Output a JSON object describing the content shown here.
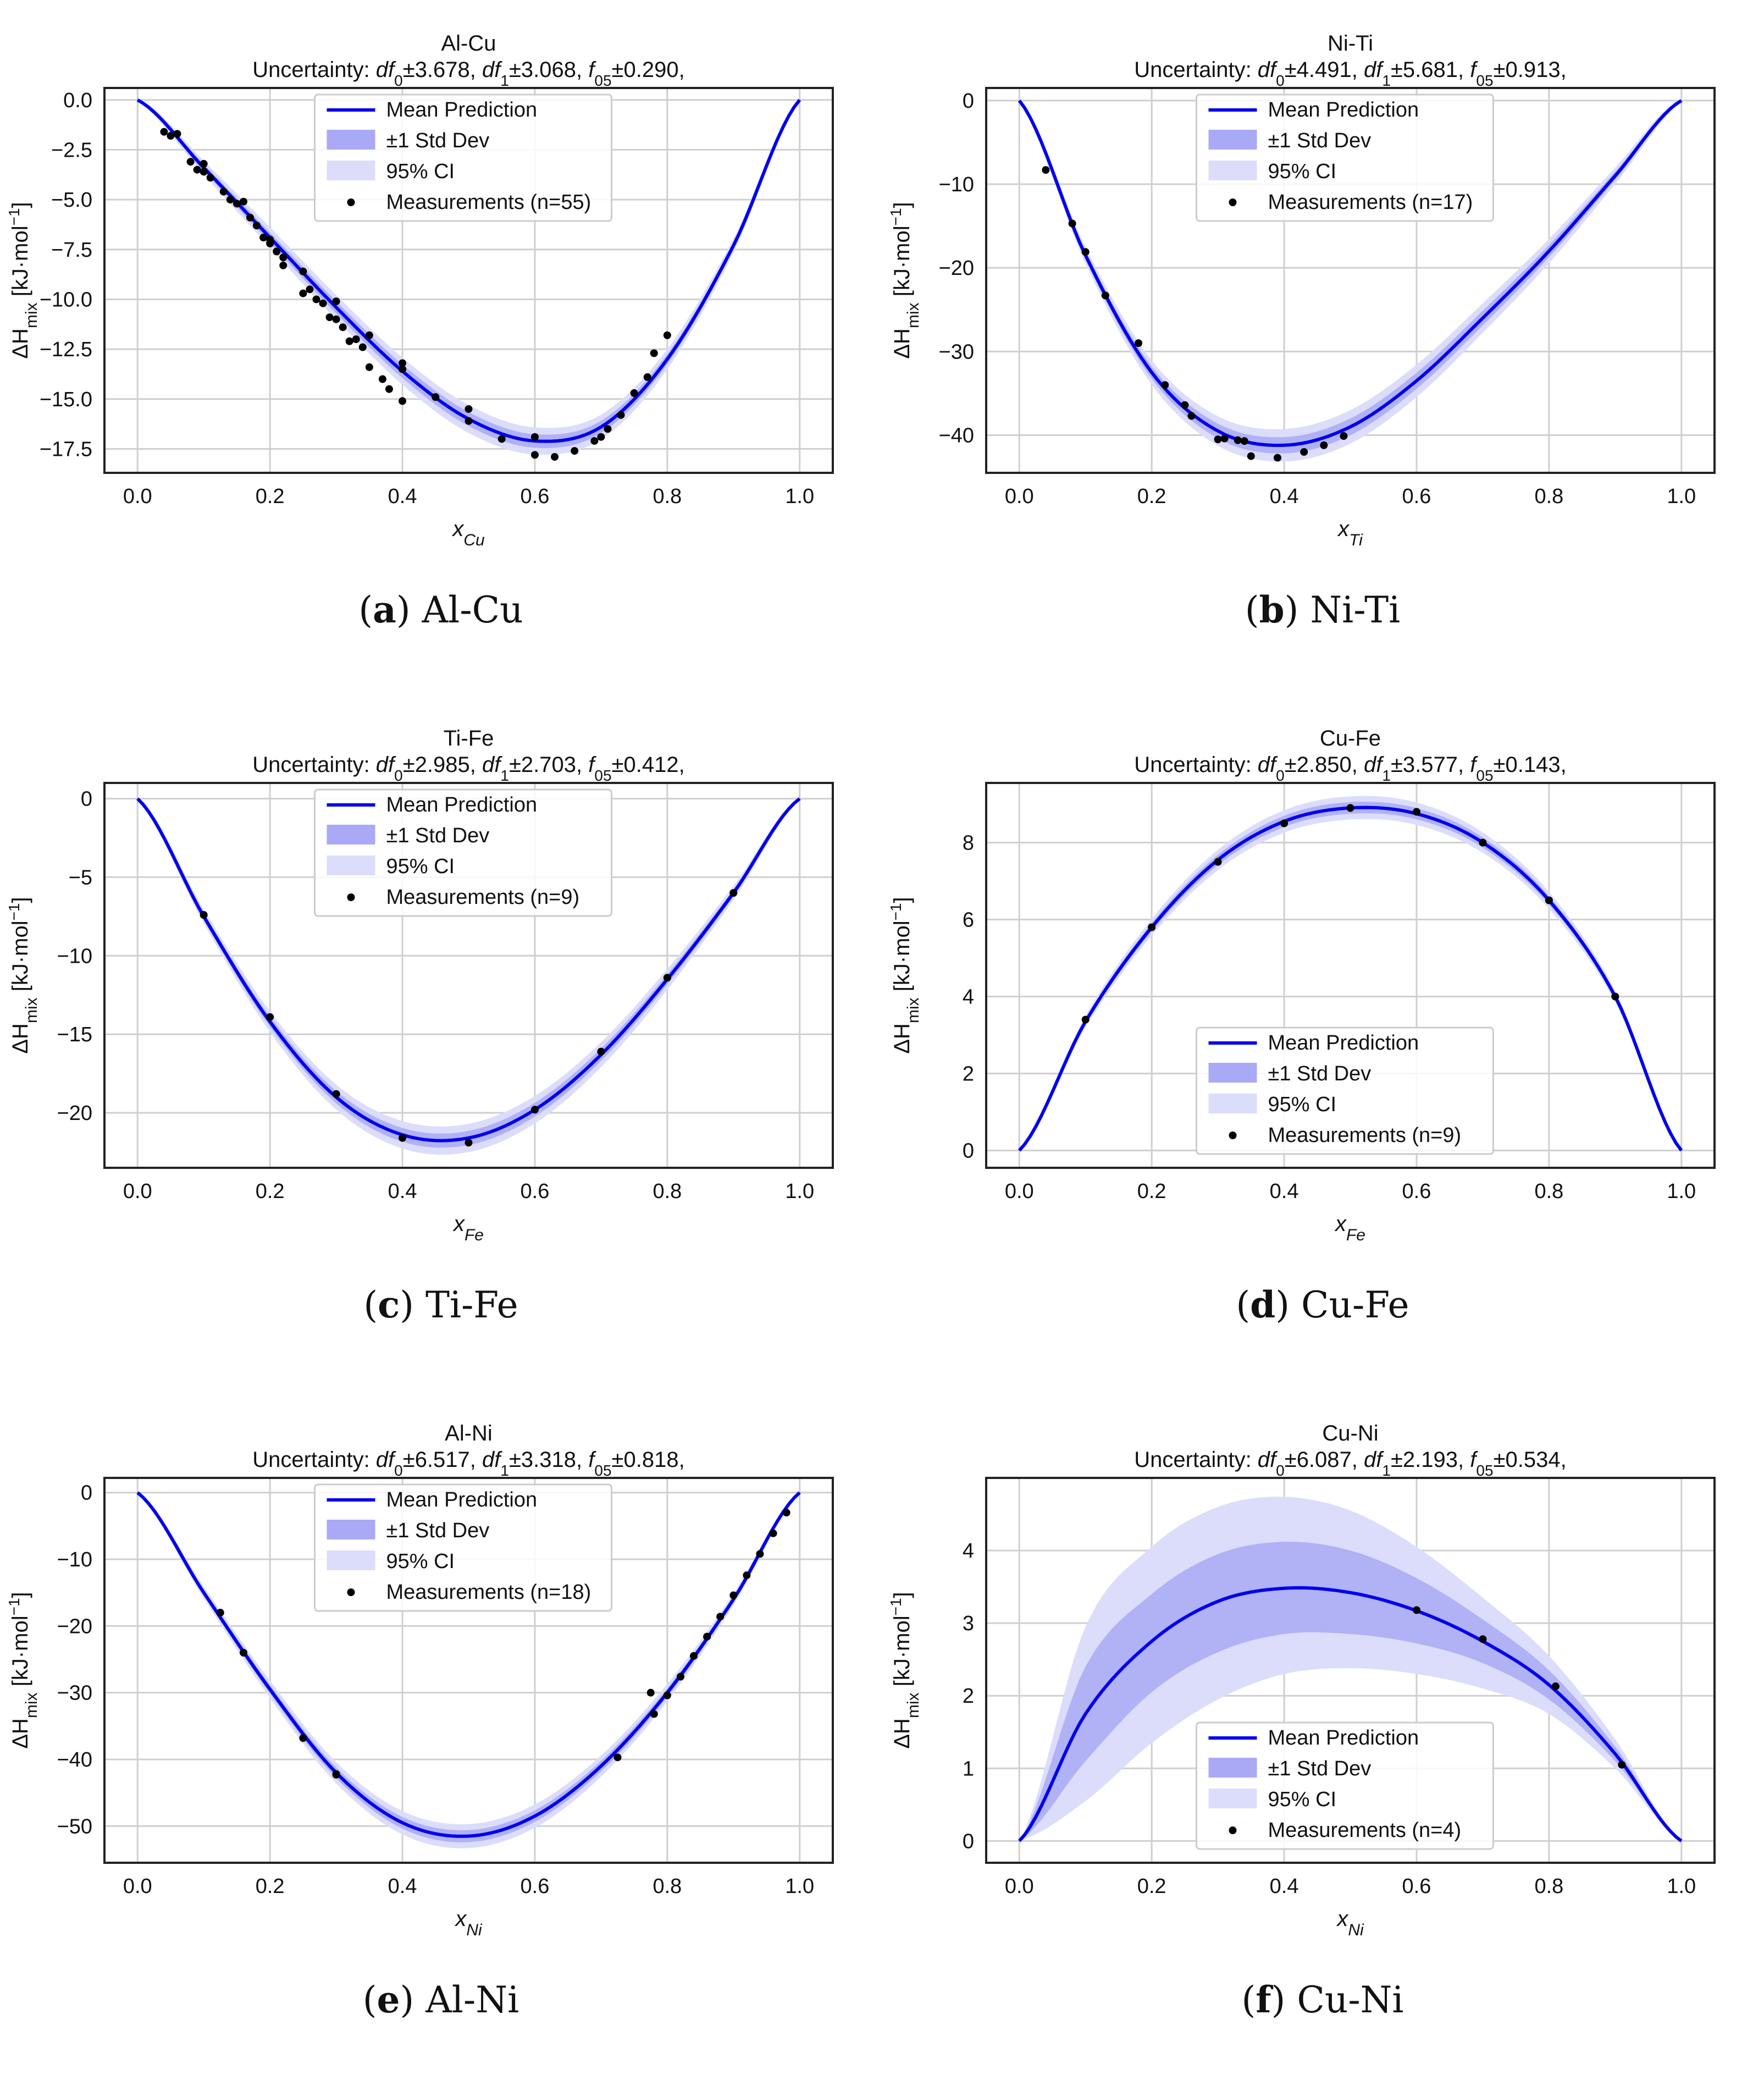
{
  "figure": {
    "common": {
      "ylabel_main": "ΔH",
      "ylabel_sub": "mix",
      "ylabel_units": " [kJ·mol",
      "ylabel_exp": "−1",
      "ylabel_close": "]",
      "uncertainty_prefix": "Uncertainty: ",
      "df0_symbol": "df",
      "df0_sub": "0",
      "df1_symbol": "df",
      "df1_sub": "1",
      "f05_symbol": "f",
      "f05_sub": "05",
      "legend_mean": "Mean Prediction",
      "legend_std": "±1 Std Dev",
      "legend_ci": "95% CI",
      "legend_meas_prefix": "Measurements (n=",
      "legend_meas_suffix": ")"
    },
    "colors": {
      "line": "#0000ee",
      "band1": "#a9a9f5",
      "band2": "#dcdcfb",
      "points": "#000000",
      "grid": "#cfcfcf"
    }
  },
  "chart_data": [
    {
      "type": "line",
      "caption_letter": "a",
      "caption_text": "Al-Cu",
      "title": "Al-Cu",
      "df0_value": "±3.678,",
      "df1_value": "±3.068,",
      "f05_value": "±0.290,",
      "xlabel_main": "x",
      "xlabel_sub": "Cu",
      "n": 55,
      "xlim": [
        -0.05,
        1.05
      ],
      "ylim": [
        -18.7,
        0.6
      ],
      "yticks": [
        0.0,
        -2.5,
        -5.0,
        -7.5,
        -10.0,
        -12.5,
        -15.0,
        -17.5
      ],
      "ytick_labels": [
        "0.0",
        "−2.5",
        "−5.0",
        "−7.5",
        "−10.0",
        "−12.5",
        "−15.0",
        "−17.5"
      ],
      "xticks": [
        0.0,
        0.2,
        0.4,
        0.6,
        0.8,
        1.0
      ],
      "xtick_labels": [
        "0.0",
        "0.2",
        "0.4",
        "0.6",
        "0.8",
        "1.0"
      ],
      "curve": {
        "x": [
          0,
          0.1,
          0.2,
          0.3,
          0.4,
          0.5,
          0.6,
          0.7,
          0.8,
          0.9,
          1.0
        ],
        "y": [
          0,
          -3.4,
          -6.9,
          -10.4,
          -13.6,
          -16.0,
          -17.1,
          -16.4,
          -13.0,
          -7.3,
          0
        ]
      },
      "std": 0.35,
      "ci": 0.7,
      "legend_pos": "top-center",
      "points": [
        [
          0.04,
          -1.6
        ],
        [
          0.05,
          -1.8
        ],
        [
          0.06,
          -1.7
        ],
        [
          0.08,
          -3.1
        ],
        [
          0.09,
          -3.5
        ],
        [
          0.1,
          -3.2
        ],
        [
          0.1,
          -3.6
        ],
        [
          0.11,
          -3.9
        ],
        [
          0.13,
          -4.6
        ],
        [
          0.14,
          -5.0
        ],
        [
          0.15,
          -5.2
        ],
        [
          0.16,
          -5.1
        ],
        [
          0.17,
          -5.9
        ],
        [
          0.18,
          -6.3
        ],
        [
          0.19,
          -6.9
        ],
        [
          0.2,
          -7.0
        ],
        [
          0.2,
          -7.2
        ],
        [
          0.21,
          -7.6
        ],
        [
          0.22,
          -7.9
        ],
        [
          0.22,
          -8.3
        ],
        [
          0.25,
          -8.6
        ],
        [
          0.25,
          -9.7
        ],
        [
          0.26,
          -9.5
        ],
        [
          0.27,
          -10.0
        ],
        [
          0.28,
          -10.2
        ],
        [
          0.29,
          -10.9
        ],
        [
          0.3,
          -10.1
        ],
        [
          0.3,
          -11.0
        ],
        [
          0.31,
          -11.4
        ],
        [
          0.32,
          -12.1
        ],
        [
          0.33,
          -12.0
        ],
        [
          0.34,
          -12.4
        ],
        [
          0.35,
          -11.8
        ],
        [
          0.35,
          -13.4
        ],
        [
          0.37,
          -14.0
        ],
        [
          0.38,
          -14.5
        ],
        [
          0.4,
          -13.2
        ],
        [
          0.4,
          -13.5
        ],
        [
          0.4,
          -15.1
        ],
        [
          0.45,
          -14.9
        ],
        [
          0.5,
          -15.5
        ],
        [
          0.5,
          -16.1
        ],
        [
          0.55,
          -17.0
        ],
        [
          0.6,
          -17.8
        ],
        [
          0.6,
          -16.9
        ],
        [
          0.63,
          -17.9
        ],
        [
          0.66,
          -17.6
        ],
        [
          0.69,
          -17.1
        ],
        [
          0.7,
          -16.9
        ],
        [
          0.71,
          -16.5
        ],
        [
          0.73,
          -15.8
        ],
        [
          0.75,
          -14.7
        ],
        [
          0.77,
          -13.9
        ],
        [
          0.78,
          -12.7
        ],
        [
          0.8,
          -11.8
        ]
      ]
    },
    {
      "type": "line",
      "caption_letter": "b",
      "caption_text": "Ni-Ti",
      "title": "Ni-Ti",
      "df0_value": "±4.491,",
      "df1_value": "±5.681,",
      "f05_value": "±0.913,",
      "xlabel_main": "x",
      "xlabel_sub": "Ti",
      "n": 17,
      "xlim": [
        -0.05,
        1.05
      ],
      "ylim": [
        -44.5,
        1.5
      ],
      "yticks": [
        0,
        -10,
        -20,
        -30,
        -40
      ],
      "ytick_labels": [
        "0",
        "−10",
        "−20",
        "−30",
        "−40"
      ],
      "xticks": [
        0.0,
        0.2,
        0.4,
        0.6,
        0.8,
        1.0
      ],
      "xtick_labels": [
        "0.0",
        "0.2",
        "0.4",
        "0.6",
        "0.8",
        "1.0"
      ],
      "curve": {
        "x": [
          0,
          0.1,
          0.2,
          0.3,
          0.4,
          0.5,
          0.6,
          0.7,
          0.8,
          0.9,
          1.0
        ],
        "y": [
          0,
          -18.5,
          -32.5,
          -39.5,
          -41.2,
          -39.0,
          -33.5,
          -26.0,
          -18.0,
          -9.0,
          0
        ]
      },
      "std": 1.0,
      "ci": 2.0,
      "legend_pos": "top-center",
      "points": [
        [
          0.04,
          -8.3
        ],
        [
          0.08,
          -14.7
        ],
        [
          0.1,
          -18.1
        ],
        [
          0.13,
          -23.3
        ],
        [
          0.18,
          -29.0
        ],
        [
          0.22,
          -34.0
        ],
        [
          0.25,
          -36.4
        ],
        [
          0.26,
          -37.7
        ],
        [
          0.3,
          -40.5
        ],
        [
          0.31,
          -40.4
        ],
        [
          0.34,
          -40.7
        ],
        [
          0.35,
          -42.5
        ],
        [
          0.39,
          -42.7
        ],
        [
          0.43,
          -42.0
        ],
        [
          0.46,
          -41.2
        ],
        [
          0.49,
          -40.1
        ],
        [
          0.33,
          -40.6
        ]
      ]
    },
    {
      "type": "line",
      "caption_letter": "c",
      "caption_text": "Ti-Fe",
      "title": "Ti-Fe",
      "df0_value": "±2.985,",
      "df1_value": "±2.703,",
      "f05_value": "±0.412,",
      "xlabel_main": "x",
      "xlabel_sub": "Fe",
      "n": 9,
      "xlim": [
        -0.05,
        1.05
      ],
      "ylim": [
        -23.5,
        1.0
      ],
      "yticks": [
        0,
        -5,
        -10,
        -15,
        -20
      ],
      "ytick_labels": [
        "0",
        "−5",
        "−10",
        "−15",
        "−20"
      ],
      "xticks": [
        0.0,
        0.2,
        0.4,
        0.6,
        0.8,
        1.0
      ],
      "xtick_labels": [
        "0.0",
        "0.2",
        "0.4",
        "0.6",
        "0.8",
        "1.0"
      ],
      "curve": {
        "x": [
          0,
          0.1,
          0.2,
          0.3,
          0.4,
          0.5,
          0.6,
          0.7,
          0.8,
          0.9,
          1.0
        ],
        "y": [
          0,
          -7.5,
          -14.2,
          -19.0,
          -21.4,
          -21.6,
          -19.8,
          -16.3,
          -11.5,
          -6.0,
          0
        ]
      },
      "std": 0.45,
      "ci": 0.9,
      "legend_pos": "top-center",
      "points": [
        [
          0.1,
          -7.4
        ],
        [
          0.2,
          -13.9
        ],
        [
          0.3,
          -18.8
        ],
        [
          0.4,
          -21.6
        ],
        [
          0.5,
          -21.9
        ],
        [
          0.6,
          -19.8
        ],
        [
          0.7,
          -16.1
        ],
        [
          0.8,
          -11.4
        ],
        [
          0.9,
          -6.0
        ]
      ]
    },
    {
      "type": "line",
      "caption_letter": "d",
      "caption_text": "Cu-Fe",
      "title": "Cu-Fe",
      "df0_value": "±2.850,",
      "df1_value": "±3.577,",
      "f05_value": "±0.143,",
      "xlabel_main": "x",
      "xlabel_sub": "Fe",
      "n": 9,
      "xlim": [
        -0.05,
        1.05
      ],
      "ylim": [
        -0.45,
        9.55
      ],
      "yticks": [
        0,
        2,
        4,
        6,
        8
      ],
      "ytick_labels": [
        "0",
        "2",
        "4",
        "6",
        "8"
      ],
      "xticks": [
        0.0,
        0.2,
        0.4,
        0.6,
        0.8,
        1.0
      ],
      "xtick_labels": [
        "0.0",
        "0.2",
        "0.4",
        "0.6",
        "0.8",
        "1.0"
      ],
      "curve": {
        "x": [
          0,
          0.1,
          0.2,
          0.3,
          0.4,
          0.5,
          0.6,
          0.7,
          0.8,
          0.9,
          1.0
        ],
        "y": [
          0,
          3.35,
          5.8,
          7.55,
          8.55,
          8.9,
          8.75,
          8.0,
          6.5,
          4.0,
          0
        ]
      },
      "std": 0.15,
      "ci": 0.3,
      "legend_pos": "bottom-center",
      "points": [
        [
          0.1,
          3.4
        ],
        [
          0.2,
          5.8
        ],
        [
          0.3,
          7.5
        ],
        [
          0.4,
          8.5
        ],
        [
          0.5,
          8.9
        ],
        [
          0.6,
          8.8
        ],
        [
          0.7,
          8.0
        ],
        [
          0.8,
          6.5
        ],
        [
          0.9,
          4.0
        ]
      ]
    },
    {
      "type": "line",
      "caption_letter": "e",
      "caption_text": "Al-Ni",
      "title": "Al-Ni",
      "df0_value": "±6.517,",
      "df1_value": "±3.318,",
      "f05_value": "±0.818,",
      "xlabel_main": "x",
      "xlabel_sub": "Ni",
      "n": 18,
      "xlim": [
        -0.05,
        1.05
      ],
      "ylim": [
        -55.5,
        2.2
      ],
      "yticks": [
        0,
        -10,
        -20,
        -30,
        -40,
        -50
      ],
      "ytick_labels": [
        "0",
        "−10",
        "−20",
        "−30",
        "−40",
        "−50"
      ],
      "xticks": [
        0.0,
        0.2,
        0.4,
        0.6,
        0.8,
        1.0
      ],
      "xtick_labels": [
        "0.0",
        "0.2",
        "0.4",
        "0.6",
        "0.8",
        "1.0"
      ],
      "curve": {
        "x": [
          0,
          0.1,
          0.2,
          0.3,
          0.4,
          0.5,
          0.6,
          0.7,
          0.8,
          0.9,
          1.0
        ],
        "y": [
          0,
          -15.0,
          -29.5,
          -42.0,
          -49.5,
          -51.5,
          -48.5,
          -41.0,
          -30.0,
          -16.0,
          0
        ]
      },
      "std": 0.9,
      "ci": 1.8,
      "legend_pos": "top-center",
      "points": [
        [
          0.125,
          -18.0
        ],
        [
          0.16,
          -24.0
        ],
        [
          0.25,
          -36.8
        ],
        [
          0.3,
          -42.2
        ],
        [
          0.725,
          -39.7
        ],
        [
          0.775,
          -30.0
        ],
        [
          0.78,
          -33.2
        ],
        [
          0.8,
          -30.4
        ],
        [
          0.82,
          -27.6
        ],
        [
          0.84,
          -24.5
        ],
        [
          0.86,
          -21.6
        ],
        [
          0.88,
          -18.6
        ],
        [
          0.9,
          -15.4
        ],
        [
          0.92,
          -12.4
        ],
        [
          0.94,
          -9.2
        ],
        [
          0.96,
          -6.1
        ],
        [
          0.98,
          -3.0
        ],
        [
          0.3,
          -42.3
        ]
      ]
    },
    {
      "type": "line",
      "caption_letter": "f",
      "caption_text": "Cu-Ni",
      "title": "Cu-Ni",
      "df0_value": "±6.087,",
      "df1_value": "±2.193,",
      "f05_value": "±0.534,",
      "xlabel_main": "x",
      "xlabel_sub": "Ni",
      "n": 4,
      "xlim": [
        -0.05,
        1.05
      ],
      "ylim": [
        -0.3,
        5.0
      ],
      "yticks": [
        0,
        1,
        2,
        3,
        4
      ],
      "ytick_labels": [
        "0",
        "1",
        "2",
        "3",
        "4"
      ],
      "xticks": [
        0.0,
        0.2,
        0.4,
        0.6,
        0.8,
        1.0
      ],
      "xtick_labels": [
        "0.0",
        "0.2",
        "0.4",
        "0.6",
        "0.8",
        "1.0"
      ],
      "curve": {
        "x": [
          0,
          0.1,
          0.2,
          0.3,
          0.4,
          0.5,
          0.6,
          0.7,
          0.8,
          0.9,
          1.0
        ],
        "y": [
          0,
          1.75,
          2.75,
          3.3,
          3.48,
          3.42,
          3.17,
          2.75,
          2.15,
          1.2,
          0
        ]
      },
      "std1_upper": [
        0,
        2.4,
        3.4,
        3.95,
        4.12,
        4.0,
        3.62,
        3.05,
        2.35,
        1.3,
        0
      ],
      "std1_lower": [
        0,
        1.1,
        2.05,
        2.6,
        2.85,
        2.85,
        2.72,
        2.45,
        1.95,
        1.1,
        0
      ],
      "ci_upper": [
        0,
        2.95,
        4.05,
        4.6,
        4.74,
        4.55,
        4.05,
        3.35,
        2.55,
        1.4,
        0
      ],
      "ci_lower": [
        0,
        0.55,
        1.35,
        1.95,
        2.3,
        2.38,
        2.3,
        2.1,
        1.75,
        1.0,
        0
      ],
      "legend_pos": "bottom-center",
      "points": [
        [
          0.6,
          3.18
        ],
        [
          0.7,
          2.78
        ],
        [
          0.81,
          2.13
        ],
        [
          0.91,
          1.05
        ]
      ]
    }
  ]
}
